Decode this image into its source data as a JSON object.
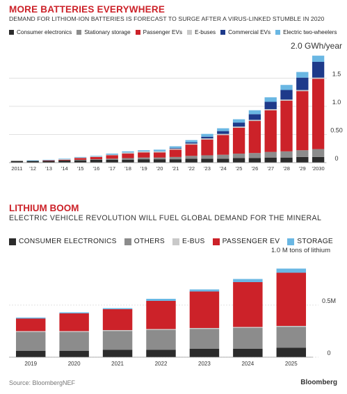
{
  "colors": {
    "consumer": "#2b2b2b",
    "stationary": "#8c8c8c",
    "ebus": "#c9c9c9",
    "passenger": "#cc2229",
    "commercial": "#1e3a8a",
    "two_wheelers": "#6ab7e3",
    "title": "#cc2229"
  },
  "chart_data": [
    {
      "type": "bar",
      "stacked": true,
      "title": "MORE BATTERIES EVERYWHERE",
      "subtitle": "DEMAND FOR LITHIOM-ION BATTERIES IS FORECAST TO SURGE AFTER A VIRUS-LINKED STUMBLE IN 2020",
      "unit_label": "2.0 GWh/year",
      "ylim": [
        0,
        2.0
      ],
      "y_ticks": [
        {
          "value": 1.5,
          "label": "1.5"
        },
        {
          "value": 1.0,
          "label": "1.0"
        },
        {
          "value": 0.5,
          "label": "0.50"
        },
        {
          "value": 0,
          "label": "0"
        }
      ],
      "legend_position": "top",
      "categories": [
        "2011",
        "'12",
        "'13",
        "'14",
        "'15",
        "'16",
        "'17",
        "'18",
        "'19",
        "'20",
        "'21",
        "'22",
        "'23",
        "'24",
        "'25",
        "'26",
        "'27",
        "'28",
        "'29",
        "'2030"
      ],
      "series": [
        {
          "name": "Consumer electronics",
          "color_key": "consumer",
          "values": [
            0.03,
            0.03,
            0.03,
            0.04,
            0.04,
            0.05,
            0.05,
            0.05,
            0.06,
            0.06,
            0.06,
            0.07,
            0.07,
            0.07,
            0.08,
            0.08,
            0.09,
            0.09,
            0.1,
            0.1
          ]
        },
        {
          "name": "Stationary storage",
          "color_key": "stationary",
          "values": [
            0.0,
            0.0,
            0.0,
            0.0,
            0.01,
            0.01,
            0.02,
            0.03,
            0.03,
            0.03,
            0.04,
            0.05,
            0.06,
            0.07,
            0.08,
            0.09,
            0.1,
            0.11,
            0.12,
            0.14
          ]
        },
        {
          "name": "Passenger EVs",
          "color_key": "passenger",
          "values": [
            0.0,
            0.0,
            0.01,
            0.01,
            0.03,
            0.04,
            0.06,
            0.08,
            0.09,
            0.09,
            0.13,
            0.2,
            0.28,
            0.35,
            0.46,
            0.57,
            0.74,
            0.9,
            1.05,
            1.25
          ]
        },
        {
          "name": "E-buses",
          "color_key": "ebus",
          "values": [
            0.0,
            0.0,
            0.0,
            0.01,
            0.01,
            0.01,
            0.01,
            0.02,
            0.02,
            0.02,
            0.02,
            0.02,
            0.02,
            0.02,
            0.02,
            0.02,
            0.02,
            0.02,
            0.02,
            0.02
          ]
        },
        {
          "name": "Commercial EVs",
          "color_key": "commercial",
          "values": [
            0.0,
            0.0,
            0.0,
            0.0,
            0.0,
            0.0,
            0.0,
            0.0,
            0.0,
            0.0,
            0.01,
            0.02,
            0.03,
            0.05,
            0.07,
            0.1,
            0.13,
            0.17,
            0.22,
            0.28
          ]
        },
        {
          "name": "Electric two-wheelers",
          "color_key": "two_wheelers",
          "values": [
            0.0,
            0.01,
            0.01,
            0.01,
            0.01,
            0.01,
            0.02,
            0.02,
            0.02,
            0.03,
            0.03,
            0.04,
            0.05,
            0.05,
            0.06,
            0.07,
            0.08,
            0.09,
            0.1,
            0.11
          ]
        }
      ]
    },
    {
      "type": "bar",
      "stacked": true,
      "title": "LITHIUM BOOM",
      "subtitle": "ELECTRIC VEHICLE REVOLUTION WILL FUEL GLOBAL DEMAND FOR THE MINERAL",
      "unit_label": "1.0 M tons of lithium",
      "ylim": [
        0,
        1.0
      ],
      "y_ticks": [
        {
          "value": 0.5,
          "label": "0.5M"
        },
        {
          "value": 0,
          "label": "0"
        }
      ],
      "legend_position": "top",
      "categories": [
        "2019",
        "2020",
        "2021",
        "2022",
        "2023",
        "2024",
        "2025"
      ],
      "series": [
        {
          "name": "CONSUMER ELECTRONICS",
          "color_key": "consumer",
          "values": [
            0.06,
            0.06,
            0.07,
            0.07,
            0.08,
            0.08,
            0.09
          ]
        },
        {
          "name": "OTHERS",
          "color_key": "stationary",
          "values": [
            0.18,
            0.18,
            0.18,
            0.19,
            0.19,
            0.2,
            0.2
          ]
        },
        {
          "name": "E-BUS",
          "color_key": "ebus",
          "values": [
            0.01,
            0.01,
            0.01,
            0.01,
            0.01,
            0.01,
            0.01
          ]
        },
        {
          "name": "PASSENGER EV",
          "color_key": "passenger",
          "values": [
            0.12,
            0.17,
            0.2,
            0.27,
            0.35,
            0.43,
            0.51
          ]
        },
        {
          "name": "STORAGE",
          "color_key": "two_wheelers",
          "values": [
            0.01,
            0.01,
            0.01,
            0.02,
            0.02,
            0.03,
            0.04
          ]
        }
      ]
    }
  ],
  "footer": {
    "source": "Source: BloombergNEF",
    "brand": "Bloomberg"
  }
}
